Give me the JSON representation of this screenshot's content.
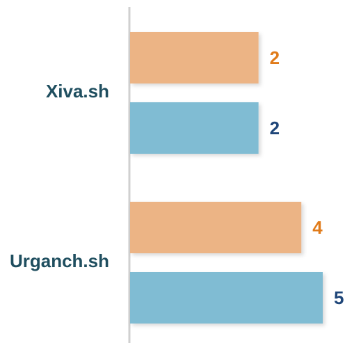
{
  "chart_data": {
    "type": "bar",
    "orientation": "horizontal",
    "categories": [
      "Xiva.sh",
      "Urganch.sh"
    ],
    "series": [
      {
        "color": "#ecb485",
        "label_color": "#e07b1a",
        "values": [
          2,
          4
        ]
      },
      {
        "color": "#80bcd3",
        "label_color": "#1f4679",
        "values": [
          2,
          5
        ]
      }
    ],
    "xlim": [
      -4,
      5
    ]
  }
}
